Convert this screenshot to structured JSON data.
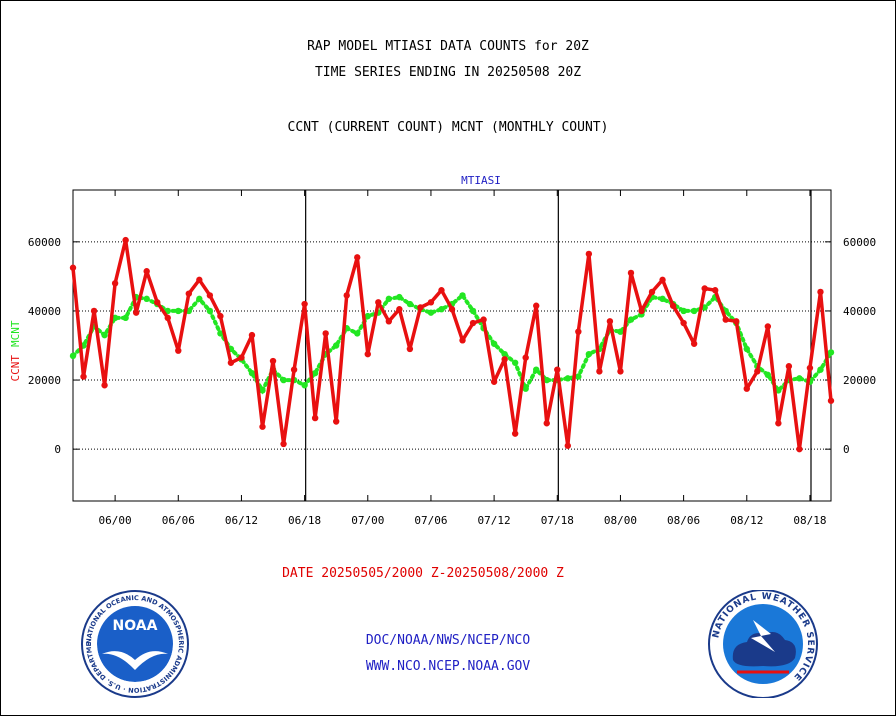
{
  "header": {
    "title_line1": "RAP MODEL MTIASI DATA COUNTS for 20Z",
    "title_line2": "TIME SERIES ENDING IN 20250508 20Z",
    "subtitle": "CCNT (CURRENT COUNT) MCNT (MONTHLY COUNT)"
  },
  "footer": {
    "date_range": "DATE 20250505/2000 Z-20250508/2000 Z",
    "org": "DOC/NOAA/NWS/NCEP/NCO",
    "url": "WWW.NCO.NCEP.NOAA.GOV"
  },
  "logos": {
    "noaa_text": "NOAA",
    "noaa_ring": "NATIONAL OCEANIC AND ATMOSPHERIC ADMINISTRATION · U.S. DEPARTMENT OF COMMERCE ·",
    "nws_ring": "NATIONAL WEATHER SERVICE"
  },
  "colors": {
    "ccnt": "#e81010",
    "mcnt": "#22e622",
    "axis_label": "#1f1fc4",
    "text": "#000000"
  },
  "chart_data": {
    "type": "line",
    "title": "MTIASI",
    "ylabel_left_series": [
      "CCNT",
      "MCNT"
    ],
    "ylim": [
      -15000,
      75000
    ],
    "yticks": [
      0,
      20000,
      40000,
      60000
    ],
    "ytick_labels": [
      "0",
      "20000",
      "40000",
      "60000"
    ],
    "xtick_labels": [
      "06/00",
      "06/06",
      "06/12",
      "06/18",
      "07/00",
      "07/06",
      "07/12",
      "07/18",
      "08/00",
      "08/06",
      "08/12",
      "08/18"
    ],
    "xticks_hours_from_start": [
      4,
      10,
      16,
      22,
      28,
      34,
      40,
      46,
      52,
      58,
      64,
      70
    ],
    "day_boundaries_hours": [
      22.1,
      46.1,
      70.1
    ],
    "x_range_hours": [
      0,
      72
    ],
    "grid": true,
    "series": [
      {
        "name": "CCNT",
        "values": [
          52500,
          21000,
          40000,
          18500,
          48000,
          60500,
          39500,
          51500,
          42500,
          38000,
          28500,
          45000,
          49000,
          44500,
          38500,
          25000,
          26500,
          33000,
          6500,
          25500,
          1500,
          23000,
          42000,
          9000,
          33500,
          8000,
          44500,
          55500,
          27500,
          42500,
          37000,
          40500,
          29000,
          41000,
          42500,
          46000,
          40500,
          31500,
          36500,
          37500,
          19500,
          26000,
          4500,
          26500,
          41500,
          7500,
          23000,
          1000,
          34000,
          56500,
          22500,
          37000,
          22500,
          51000,
          40000,
          45500,
          49000,
          41500,
          36500,
          30500,
          46500,
          46000,
          37500,
          37000,
          17500,
          22500,
          35500,
          7500,
          24000,
          0,
          23500,
          45500,
          14000
        ]
      },
      {
        "name": "MCNT",
        "values": [
          27000,
          30000,
          35500,
          33000,
          38000,
          38000,
          44000,
          43500,
          42000,
          40000,
          40000,
          40000,
          43500,
          40000,
          33500,
          29000,
          26000,
          22000,
          17000,
          23000,
          20000,
          20000,
          18500,
          22000,
          27500,
          30000,
          35000,
          33500,
          38500,
          39500,
          43500,
          44000,
          42000,
          40500,
          39500,
          40500,
          42000,
          44500,
          40000,
          35000,
          30500,
          27500,
          25000,
          17500,
          23000,
          20000,
          20000,
          20500,
          21000,
          27500,
          29000,
          34500,
          34000,
          37500,
          39000,
          44000,
          43500,
          42000,
          40000,
          40000,
          41000,
          44000,
          40000,
          36500,
          29000,
          24000,
          21500,
          17000,
          20000,
          20500,
          19500,
          23000,
          28000
        ]
      }
    ]
  }
}
